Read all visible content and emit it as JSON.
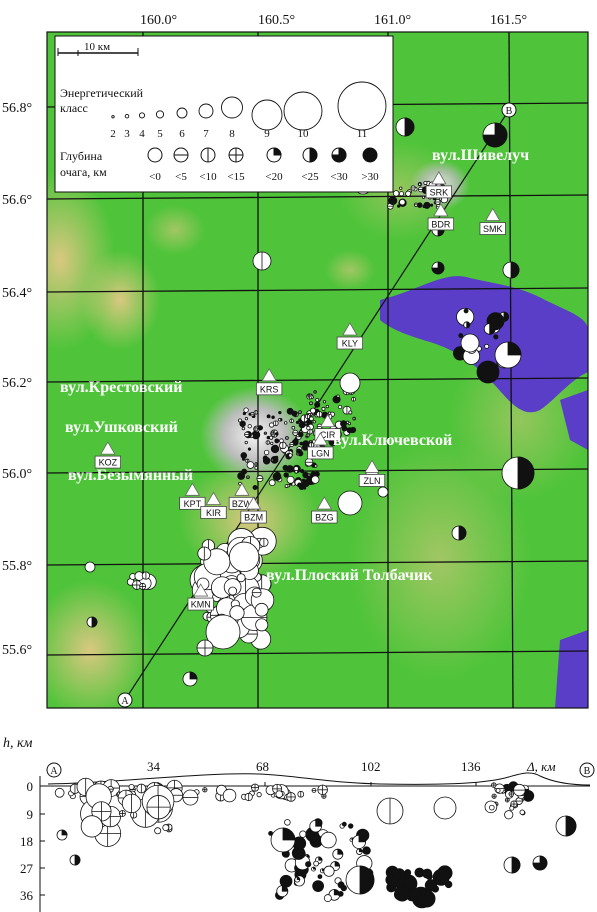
{
  "map": {
    "lon_labels": [
      "160.0°",
      "160.5°",
      "161.0°",
      "161.5°"
    ],
    "lat_labels": [
      "56.8°",
      "56.6°",
      "56.4°",
      "56.2°",
      "56.0°",
      "55.8°",
      "55.6°"
    ],
    "scale_label": "10 км",
    "volcanoes": [
      "вул.Шивелуч",
      "вул.Крестовский",
      "вул.Ушковский",
      "вул.Ключевской",
      "вул.Безымянный",
      "вул.Плоский Толбачик"
    ],
    "profile_end_a": "A",
    "profile_end_b": "B",
    "stations": [
      {
        "code": "SRD",
        "lon": 159.43,
        "lat": 56.32
      },
      {
        "code": "KOZ",
        "lon": 159.85,
        "lat": 56.05
      },
      {
        "code": "KPT",
        "lon": 160.21,
        "lat": 55.96
      },
      {
        "code": "KIR",
        "lon": 160.3,
        "lat": 55.94
      },
      {
        "code": "BZW",
        "lon": 160.42,
        "lat": 55.96
      },
      {
        "code": "BZM",
        "lon": 160.47,
        "lat": 55.93
      },
      {
        "code": "KMN",
        "lon": 160.25,
        "lat": 55.74
      },
      {
        "code": "KRS",
        "lon": 160.53,
        "lat": 56.21
      },
      {
        "code": "CIR",
        "lon": 160.78,
        "lat": 56.11
      },
      {
        "code": "LGN",
        "lon": 160.75,
        "lat": 56.07
      },
      {
        "code": "ZLN",
        "lon": 160.97,
        "lat": 56.01
      },
      {
        "code": "BZG",
        "lon": 160.77,
        "lat": 55.93
      },
      {
        "code": "KLY",
        "lon": 160.87,
        "lat": 56.31
      },
      {
        "code": "SRK",
        "lon": 161.24,
        "lat": 56.64
      },
      {
        "code": "BDR",
        "lon": 161.25,
        "lat": 56.57
      },
      {
        "code": "SMK",
        "lon": 161.47,
        "lat": 56.56
      }
    ]
  },
  "legend": {
    "energy_title_line1": "Энергетический",
    "energy_title_line2": "класс",
    "energy_classes": [
      "2",
      "3",
      "4",
      "5",
      "6",
      "7",
      "8",
      "9",
      "10",
      "11"
    ],
    "depth_title_line1": "Глубина",
    "depth_title_line2": "очага, км",
    "depth_classes": [
      "<0",
      "<5",
      "<10",
      "<15",
      "<20",
      "<25",
      "<30",
      ">30"
    ]
  },
  "profile": {
    "ylabel": "h, км",
    "xlabel": "Δ, км",
    "x_ticks": [
      "34",
      "68",
      "102",
      "136"
    ],
    "y_ticks": [
      "0",
      "9",
      "18",
      "27",
      "36"
    ],
    "end_a": "A",
    "end_b": "B"
  },
  "colors": {
    "land": "#4fc43a",
    "highland": "#c9b46a",
    "lowland": "#5a3ec8",
    "snow": "#e6e6e6",
    "grid": "#111111"
  }
}
